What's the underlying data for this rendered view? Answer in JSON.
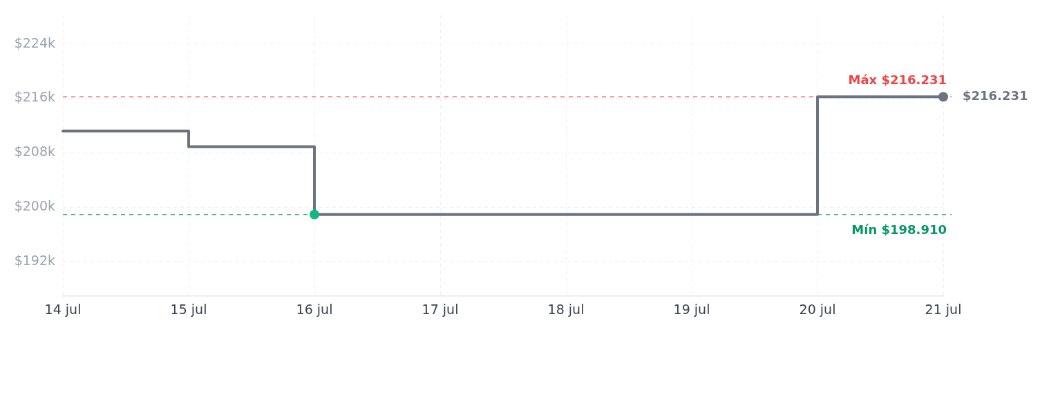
{
  "chart_data": {
    "type": "step",
    "x": [
      "--07-14",
      "--07-15",
      "--07-16",
      "--07-17",
      "--07-18",
      "--07-19",
      "--07-20",
      "--07-21"
    ],
    "series": [
      {
        "color": "#6b7280",
        "marker": "none",
        "values": [
          211200,
          208900,
          198910,
          198910,
          198910,
          198910,
          216231,
          216231
        ]
      },
      {
        "type": "scatter",
        "color": "#10b981",
        "marker": "circle",
        "x": [
          "--07-16"
        ],
        "values": [
          198910
        ]
      },
      {
        "type": "scatter",
        "color": "#6b7280",
        "marker": "circle",
        "x": [
          "--07-21"
        ],
        "values": [
          216231
        ]
      }
    ],
    "xlim": [
      "--07-14",
      "--07-21"
    ],
    "xticks": [
      {
        "value": "--07-14",
        "label": "14 jul"
      },
      {
        "value": "--07-15",
        "label": "15 jul"
      },
      {
        "value": "--07-16",
        "label": "16 jul"
      },
      {
        "value": "--07-17",
        "label": "17 jul"
      },
      {
        "value": "--07-18",
        "label": "18 jul"
      },
      {
        "value": "--07-19",
        "label": "19 jul"
      },
      {
        "value": "--07-20",
        "label": "20 jul"
      },
      {
        "value": "--07-21",
        "label": "21 jul"
      }
    ],
    "ylim": [
      186900,
      228200
    ],
    "yticks": [
      {
        "value": 192000,
        "label": "$192k"
      },
      {
        "value": 200000,
        "label": "$200k"
      },
      {
        "value": 208000,
        "label": "$208k"
      },
      {
        "value": 216000,
        "label": "$216k"
      },
      {
        "value": 224000,
        "label": "$224k"
      }
    ],
    "grid": true,
    "ref_lines": [
      {
        "axis": "y",
        "value": 216231,
        "label": "Máx $216.231",
        "color": "#ef4444",
        "line_style": "dashed"
      },
      {
        "axis": "y",
        "value": 198910,
        "label": "Mín $198.910",
        "color": "#059669",
        "line_style": "dashed"
      }
    ],
    "annotations": [
      {
        "text": "$216.231",
        "x": "--07-21",
        "y": 216231
      }
    ]
  }
}
